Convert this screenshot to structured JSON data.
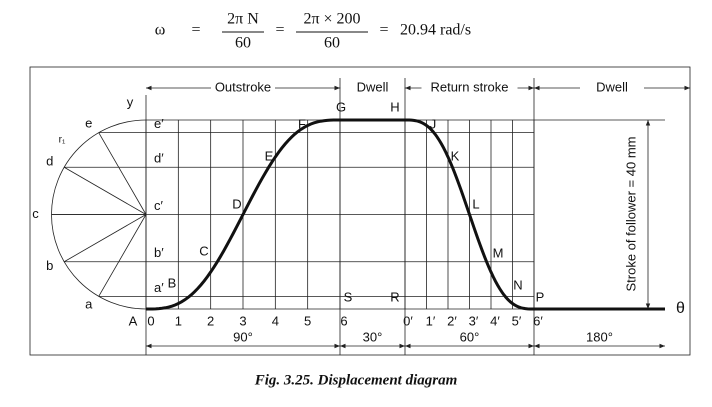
{
  "equation": {
    "symbol": "ω",
    "equals": "=",
    "fraction_1": {
      "numerator": "2π N",
      "denominator": "60"
    },
    "fraction_2": {
      "numerator": "2π × 200",
      "denominator": "60"
    },
    "result": "20.94 rad/s"
  },
  "phases": [
    "Outstroke",
    "Dwell",
    "Return stroke",
    "Dwell"
  ],
  "angles": [
    "90°",
    "30°",
    "60°",
    "180°"
  ],
  "circle_labels": [
    "a",
    "b",
    "c",
    "d",
    "e"
  ],
  "projection_labels": [
    "a′",
    "b′",
    "c′",
    "d′",
    "e′"
  ],
  "curve_labels": [
    "A",
    "B",
    "C",
    "D",
    "E",
    "F",
    "G",
    "H",
    "J",
    "K",
    "L",
    "M",
    "N",
    "P",
    "R",
    "S"
  ],
  "outstroke_divisions": [
    "0",
    "1",
    "2",
    "3",
    "4",
    "5",
    "6"
  ],
  "return_divisions": [
    "0′",
    "1′",
    "2′",
    "3′",
    "4′",
    "5′",
    "6′"
  ],
  "axis_labels": {
    "y": "y",
    "theta": "θ"
  },
  "radius_label": "r₁",
  "stroke_label": "Stroke of follower = 40 mm",
  "caption": "Fig. 3.25. Displacement diagram"
}
